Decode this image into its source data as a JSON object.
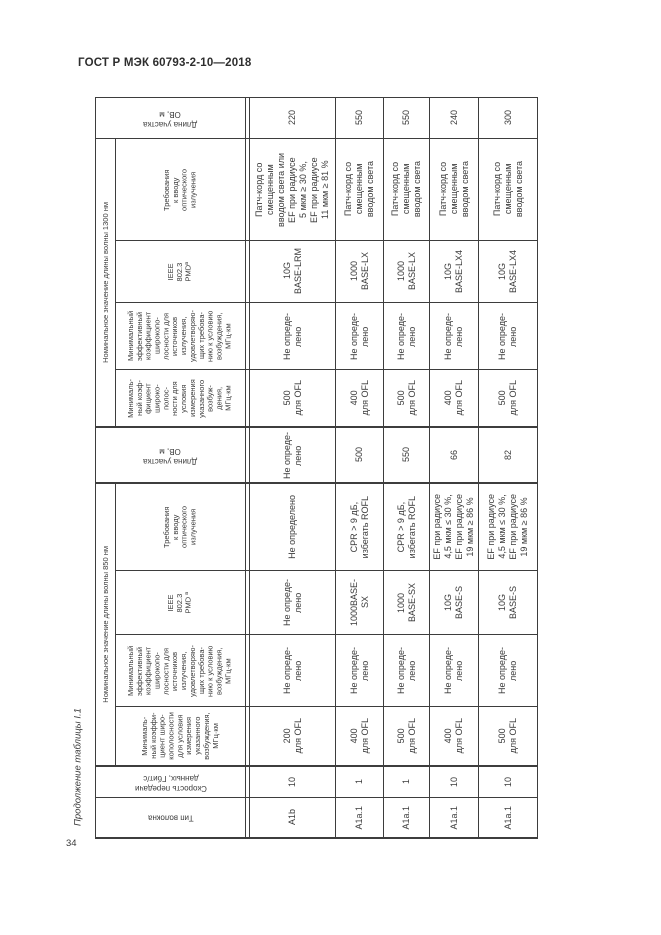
{
  "page": {
    "standard_header": "ГОСТ Р МЭК 60793-2-10—2018",
    "table_caption": "Продолжение таблицы I.1",
    "page_number": "34"
  },
  "table": {
    "groups": {
      "g1300": "Номинальное значение длины волны 1300 нм",
      "g850": "Номинальное значение длины волны 850 нм"
    },
    "headers": {
      "len1300": "Длина участка\nОВ, м",
      "req1300": "Требования\nк вводу\nоптического\nизлучения",
      "ieee1300": "IEEE\n802.3\nPMDª",
      "effbw1300": "Минимальный\nэффективный\nкоэффициент\nширокопо-\nлосности для\nисточников\nизлучения,\nудовлетворяю-\nщих требова-\nнию к условию\nвозбуждения,\nМГц·км",
      "minbw1300": "Минималь-\nный коэф-\nфициент\nшироко-\nполос-\nности для\nусловия\nизмерения\nуказанного\nвозбуж-\nдения,\nМГц·км",
      "len850": "Длина участка\nОВ, м",
      "req850": "Требования\nк вводу\nоптического\nизлучения",
      "ieee850": "IEEE\n802.3\nPMD ª",
      "effbw850": "Минимальный\nэффективный\nкоэффициент\nширокопо-\nлосности для\nисточников\nизлучения,\nудовлетворяю-\nщих требова-\nнию к условию\nвозбуждения,\nМГц·км",
      "minbw850": "Минималь-\nный коэффи-\nциент широ-\nкополосности\nдля условия\nизмерения\nуказанного\nвозбуждения,\nМГц·км",
      "speed": "Скорость передачи\nданных, Гбит/с",
      "fiber_type": "Тип волокна"
    },
    "rows": {
      "len1300": [
        "220",
        "550",
        "550",
        "240",
        "300"
      ],
      "req1300": [
        "Патч-корд со\nсмещенным\nвводом света или\nEF при радиусе\n5 мкм ≥ 30 %,\nEF при радиусе\n11 мкм ≥ 81 %",
        "Патч-корд со\nсмещенным\nвводом света",
        "Патч-корд со\nсмещенным\nвводом света",
        "Патч-корд со\nсмещенным\nвводом света",
        "Патч-корд со\nсмещенным\nвводом света"
      ],
      "ieee1300": [
        "10G\nBASE-LRM",
        "1000\nBASE-LX",
        "1000\nBASE-LX",
        "10G\nBASE-LX4",
        "10G\nBASE-LX4"
      ],
      "effbw1300": [
        "Не опреде-\nлено",
        "Не опреде-\nлено",
        "Не опреде-\nлено",
        "Не опреде-\nлено",
        "Не опреде-\nлено"
      ],
      "minbw1300": [
        "500\nдля OFL",
        "400\nдля OFL",
        "500\nдля OFL",
        "400\nдля OFL",
        "500\nдля OFL"
      ],
      "len850": [
        "Не опреде-\nлено",
        "500",
        "550",
        "66",
        "82"
      ],
      "req850": [
        "Не определено",
        "CPR > 9 дБ,\nизбегать ROFL",
        "CPR > 9 дБ,\nизбегать ROFL",
        "EF при радиусе\n4,5 мкм ≤ 30 %,\nEF при радиусе\n19 мкм ≥ 86 %",
        "EF при радиусе\n4,5 мкм ≤ 30 %,\nEF при радиусе\n19 мкм ≥ 86 %"
      ],
      "ieee850": [
        "Не опреде-\nлено",
        "1000BASE-\nSX",
        "1000\nBASE-SX",
        "10G\nBASE-S",
        "10G\nBASE-S"
      ],
      "effbw850": [
        "Не опреде-\nлено",
        "Не опреде-\nлено",
        "Не опреде-\nлено",
        "Не опреде-\nлено",
        "Не опреде-\nлено"
      ],
      "minbw850": [
        "200\nдля OFL",
        "400\nдля OFL",
        "500\nдля OFL",
        "400\nдля OFL",
        "500\nдля OFL"
      ],
      "speed": [
        "10",
        "1",
        "1",
        "10",
        "10"
      ],
      "fiber_type": [
        "А1b",
        "А1а.1",
        "А1а.1",
        "А1а.1",
        "А1а.1"
      ]
    }
  }
}
